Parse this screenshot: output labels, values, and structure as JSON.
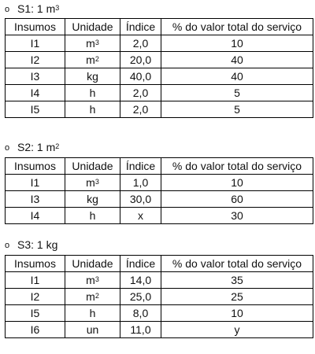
{
  "columns": [
    "Insumos",
    "Unidade",
    "Índice",
    "% do valor total do serviço"
  ],
  "sections": [
    {
      "bullet": "o",
      "title": "S1: 1 m",
      "title_sup": "3",
      "rows": [
        {
          "insumo": "I1",
          "unidade": "m",
          "unidade_sup": "3",
          "indice": "2,0",
          "percent": "10"
        },
        {
          "insumo": "I2",
          "unidade": "m",
          "unidade_sup": "2",
          "indice": "20,0",
          "percent": "40"
        },
        {
          "insumo": "I3",
          "unidade": "kg",
          "unidade_sup": "",
          "indice": "40,0",
          "percent": "40"
        },
        {
          "insumo": "I4",
          "unidade": "h",
          "unidade_sup": "",
          "indice": "2,0",
          "percent": "5"
        },
        {
          "insumo": "I5",
          "unidade": "h",
          "unidade_sup": "",
          "indice": "2,0",
          "percent": "5"
        }
      ]
    },
    {
      "bullet": "o",
      "title": "S2: 1 m",
      "title_sup": "2",
      "rows": [
        {
          "insumo": "I1",
          "unidade": "m",
          "unidade_sup": "3",
          "indice": "1,0",
          "percent": "10"
        },
        {
          "insumo": "I3",
          "unidade": "kg",
          "unidade_sup": "",
          "indice": "30,0",
          "percent": "60"
        },
        {
          "insumo": "I4",
          "unidade": "h",
          "unidade_sup": "",
          "indice": "x",
          "percent": "30"
        }
      ]
    },
    {
      "bullet": "o",
      "title": "S3: 1 kg",
      "title_sup": "",
      "rows": [
        {
          "insumo": "I1",
          "unidade": "m",
          "unidade_sup": "3",
          "indice": "14,0",
          "percent": "35"
        },
        {
          "insumo": "I2",
          "unidade": "m",
          "unidade_sup": "2",
          "indice": "25,0",
          "percent": "25"
        },
        {
          "insumo": "I5",
          "unidade": "h",
          "unidade_sup": "",
          "indice": "8,0",
          "percent": "10"
        },
        {
          "insumo": "I6",
          "unidade": "un",
          "unidade_sup": "",
          "indice": "11,0",
          "percent": "y"
        }
      ]
    }
  ]
}
